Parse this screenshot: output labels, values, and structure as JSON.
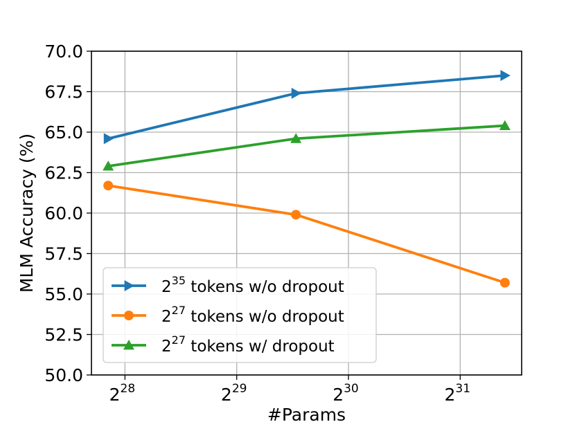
{
  "chart_data": {
    "type": "line",
    "xlabel": "#Params",
    "ylabel": "MLM Accuracy (%)",
    "x_scale": "log2",
    "xlim_log2": [
      27.7,
      31.55
    ],
    "ylim": [
      50.0,
      70.0
    ],
    "grid": true,
    "legend_position": "lower-left",
    "y_ticks": [
      "50.0",
      "52.5",
      "55.0",
      "57.5",
      "60.0",
      "62.5",
      "65.0",
      "67.5",
      "70.0"
    ],
    "x_ticks": [
      {
        "base": "2",
        "exp": "28"
      },
      {
        "base": "2",
        "exp": "29"
      },
      {
        "base": "2",
        "exp": "30"
      },
      {
        "base": "2",
        "exp": "31"
      }
    ],
    "series": [
      {
        "legend_base": "2",
        "legend_exp": "35",
        "legend_rest": " tokens w/o dropout",
        "color": "#1f77b4",
        "marker": "triangle-right",
        "x_log2": [
          27.85,
          29.53,
          31.4
        ],
        "values": [
          64.6,
          67.4,
          68.5
        ]
      },
      {
        "legend_base": "2",
        "legend_exp": "27",
        "legend_rest": " tokens w/o dropout",
        "color": "#ff7f0e",
        "marker": "circle",
        "x_log2": [
          27.85,
          29.53,
          31.4
        ],
        "values": [
          61.7,
          59.9,
          55.7
        ]
      },
      {
        "legend_base": "2",
        "legend_exp": "27",
        "legend_rest": " tokens w/ dropout",
        "color": "#2ca02c",
        "marker": "triangle-up",
        "x_log2": [
          27.85,
          29.53,
          31.4
        ],
        "values": [
          62.9,
          64.6,
          65.4
        ]
      }
    ]
  }
}
